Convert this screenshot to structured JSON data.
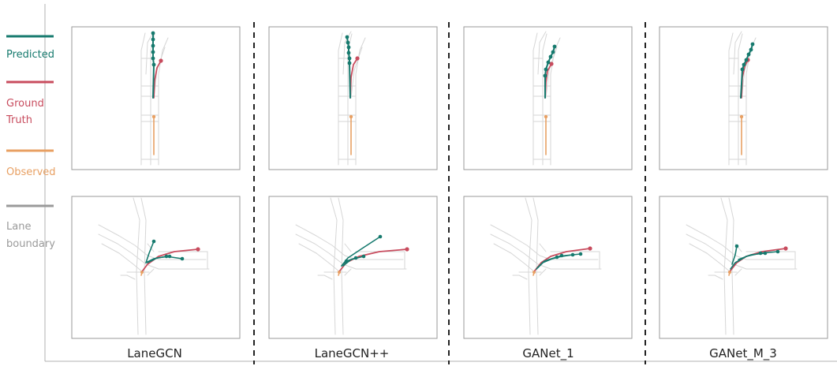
{
  "legend": {
    "items": [
      {
        "lines": [
          "Predicted"
        ],
        "color": "#167a6e"
      },
      {
        "lines": [
          "Ground",
          "Truth"
        ],
        "color": "#c84c5e"
      },
      {
        "lines": [
          "Observed"
        ],
        "color": "#e8a063"
      },
      {
        "lines": [
          "Lane",
          "boundary"
        ],
        "color": "#9a9a9a"
      }
    ]
  },
  "models": [
    "LaneGCN",
    "LaneGCN++",
    "GANet_1",
    "GANet_M_3"
  ],
  "colors": {
    "predicted": "#167a6e",
    "ground_truth": "#c84c5e",
    "observed": "#e8a063",
    "lane": "#d6d6d6",
    "frame": "#9a9a9a",
    "separator": "#222222"
  }
}
